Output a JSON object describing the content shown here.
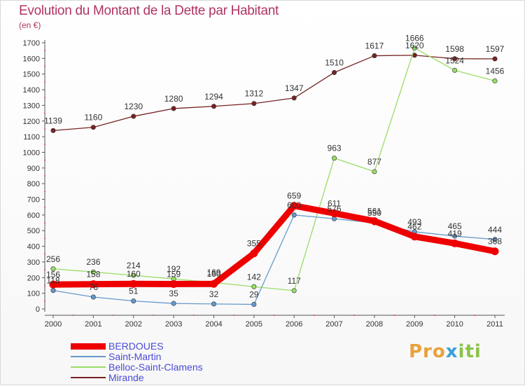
{
  "chart_data": {
    "type": "line",
    "title": "Evolution du Montant de la Dette par Habitant",
    "ylabel": "(en €)",
    "x": [
      "2000",
      "2001",
      "2002",
      "2003",
      "2004",
      "2005",
      "2006",
      "2007",
      "2008",
      "2009",
      "2010",
      "2011"
    ],
    "ylim": [
      0,
      1700
    ],
    "yticks": [
      0,
      100,
      200,
      300,
      400,
      500,
      600,
      700,
      800,
      900,
      1000,
      1100,
      1200,
      1300,
      1400,
      1500,
      1600,
      1700
    ],
    "grid": false,
    "legend_position": "bottom-left",
    "series": [
      {
        "name": "BERDOUES",
        "color": "#ee0000",
        "values": [
          156,
          158,
          160,
          159,
          160,
          355,
          659,
          611,
          561,
          462,
          419,
          368
        ]
      },
      {
        "name": "Saint-Martin",
        "color": "#6699cc",
        "values": [
          118,
          76,
          51,
          35,
          32,
          29,
          600,
          576,
          550,
          493,
          465,
          444
        ]
      },
      {
        "name": "Belloc-Saint-Clamens",
        "color": "#99dd66",
        "values": [
          256,
          236,
          214,
          192,
          169,
          142,
          117,
          963,
          877,
          1666,
          1524,
          1456
        ]
      },
      {
        "name": "Mirande",
        "color": "#772222",
        "values": [
          1139,
          1160,
          1230,
          1280,
          1294,
          1312,
          1347,
          1510,
          1617,
          1620,
          1598,
          1597
        ]
      }
    ]
  },
  "brand": {
    "p1": "Pro",
    "p2": "x",
    "p3": "iti"
  }
}
